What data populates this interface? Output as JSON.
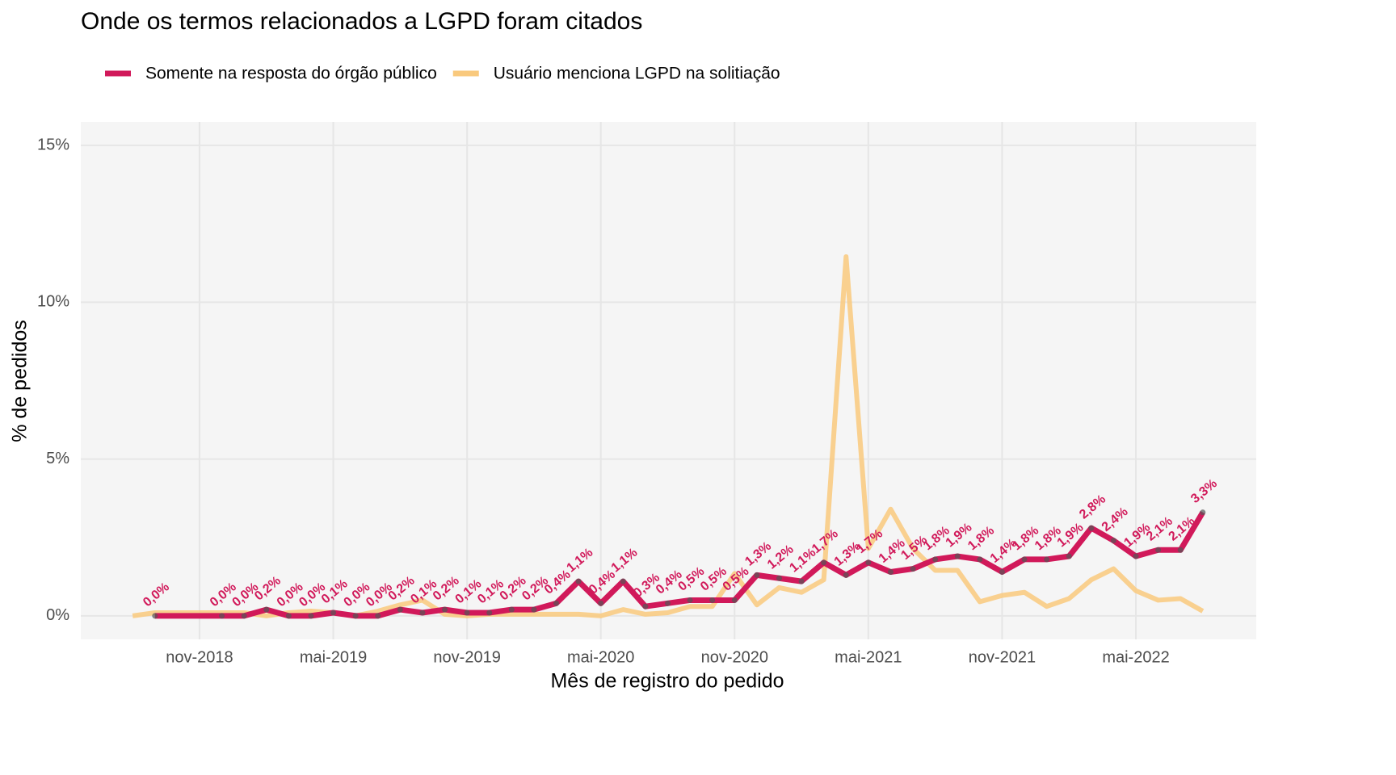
{
  "chart_data": {
    "type": "line",
    "title": "Onde os termos relacionados a LGPD foram citados",
    "x_label": "Mês de registro do pedido",
    "y_label": "% de pedidos",
    "xlim": [
      "jun-2018",
      "out-2022"
    ],
    "xticks": [
      "nov-2018",
      "mai-2019",
      "nov-2019",
      "mai-2020",
      "nov-2020",
      "mai-2021",
      "nov-2021",
      "mai-2022"
    ],
    "ylim": [
      -0.75,
      15.75
    ],
    "yticks": [
      {
        "value": 0,
        "label": "0%"
      },
      {
        "value": 5,
        "label": "5%"
      },
      {
        "value": 10,
        "label": "10%"
      },
      {
        "value": 15,
        "label": "15%"
      }
    ],
    "grid": true,
    "legend": "top",
    "series": [
      {
        "name": "Usuário menciona LGPD na solitiação",
        "color": "#f9c97d",
        "x": [
          "ago-2018",
          "set-2018",
          "out-2018",
          "nov-2018",
          "dez-2018",
          "jan-2019",
          "fev-2019",
          "mar-2019",
          "abr-2019",
          "mai-2019",
          "jun-2019",
          "jul-2019",
          "ago-2019",
          "set-2019",
          "out-2019",
          "nov-2019",
          "dez-2019",
          "jan-2020",
          "fev-2020",
          "mar-2020",
          "abr-2020",
          "mai-2020",
          "jun-2020",
          "jul-2020",
          "ago-2020",
          "set-2020",
          "out-2020",
          "nov-2020",
          "dez-2020",
          "jan-2021",
          "fev-2021",
          "mar-2021",
          "abr-2021",
          "mai-2021",
          "jun-2021",
          "jul-2021",
          "ago-2021",
          "set-2021",
          "out-2021",
          "nov-2021",
          "dez-2021",
          "jan-2022",
          "fev-2022",
          "mar-2022",
          "abr-2022",
          "mai-2022",
          "jun-2022",
          "jul-2022",
          "ago-2022"
        ],
        "values": [
          0.0,
          0.1,
          0.1,
          0.1,
          0.1,
          0.1,
          0.0,
          0.1,
          0.15,
          0.1,
          0.0,
          0.15,
          0.35,
          0.5,
          0.05,
          0.0,
          0.05,
          0.05,
          0.05,
          0.05,
          0.05,
          0.0,
          0.2,
          0.05,
          0.1,
          0.3,
          0.3,
          1.35,
          0.35,
          0.9,
          0.75,
          1.15,
          11.45,
          2.15,
          3.4,
          2.15,
          1.45,
          1.45,
          0.45,
          0.65,
          0.75,
          0.3,
          0.55,
          1.15,
          1.5,
          0.8,
          0.5,
          0.55,
          0.15
        ]
      },
      {
        "name": "Somente na resposta do órgão público",
        "color": "#d1195a",
        "x": [
          "set-2018",
          "dez-2018",
          "jan-2019",
          "fev-2019",
          "mar-2019",
          "abr-2019",
          "mai-2019",
          "jun-2019",
          "jul-2019",
          "ago-2019",
          "set-2019",
          "out-2019",
          "nov-2019",
          "dez-2019",
          "jan-2020",
          "fev-2020",
          "mar-2020",
          "abr-2020",
          "mai-2020",
          "jun-2020",
          "jul-2020",
          "ago-2020",
          "set-2020",
          "out-2020",
          "nov-2020",
          "dez-2020",
          "jan-2021",
          "fev-2021",
          "mar-2021",
          "abr-2021",
          "mai-2021",
          "jun-2021",
          "jul-2021",
          "ago-2021",
          "set-2021",
          "out-2021",
          "nov-2021",
          "dez-2021",
          "jan-2022",
          "fev-2022",
          "mar-2022",
          "abr-2022",
          "mai-2022",
          "jun-2022",
          "jul-2022",
          "ago-2022"
        ],
        "values": [
          0.0,
          0.0,
          0.0,
          0.2,
          0.0,
          0.0,
          0.1,
          0.0,
          0.0,
          0.2,
          0.1,
          0.2,
          0.1,
          0.1,
          0.2,
          0.2,
          0.4,
          1.1,
          0.4,
          1.1,
          0.3,
          0.4,
          0.5,
          0.5,
          0.5,
          1.3,
          1.2,
          1.1,
          1.7,
          1.3,
          1.7,
          1.4,
          1.5,
          1.8,
          1.9,
          1.8,
          1.4,
          1.8,
          1.8,
          1.9,
          2.8,
          2.4,
          1.9,
          2.1,
          2.1,
          3.3
        ],
        "value_labels": [
          "0,0%",
          "0,0%",
          "0,0%",
          "0,2%",
          "0,0%",
          "0,0%",
          "0,1%",
          "0,0%",
          "0,0%",
          "0,2%",
          "0,1%",
          "0,2%",
          "0,1%",
          "0,1%",
          "0,2%",
          "0,2%",
          "0,4%",
          "1,1%",
          "0,4%",
          "1,1%",
          "0,3%",
          "0,4%",
          "0,5%",
          "0,5%",
          "0,5%",
          "1,3%",
          "1,2%",
          "1,1%",
          "1,7%",
          "1,3%",
          "1,7%",
          "1,4%",
          "1,5%",
          "1,8%",
          "1,9%",
          "1,8%",
          "1,4%",
          "1,8%",
          "1,8%",
          "1,9%",
          "2,8%",
          "2,4%",
          "1,9%",
          "2,1%",
          "2,1%",
          "3,3%"
        ]
      }
    ]
  }
}
